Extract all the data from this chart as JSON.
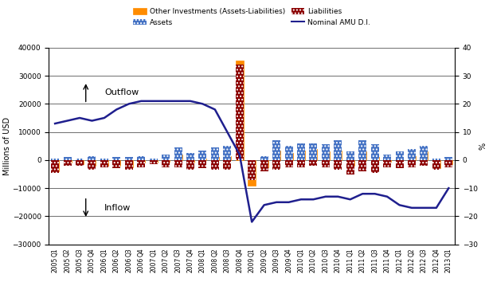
{
  "quarters": [
    "2005.Q1",
    "2005.Q2",
    "2005.Q3",
    "2005.Q4",
    "2006.Q1",
    "2006.Q2",
    "2006.Q3",
    "2006.Q4",
    "2007.Q1",
    "2007.Q2",
    "2007.Q3",
    "2007.Q4",
    "2008.Q1",
    "2008.Q2",
    "2008.Q3",
    "2008.Q4",
    "2009.Q1",
    "2009.Q2",
    "2009.Q3",
    "2009.Q4",
    "2010.Q1",
    "2010.Q2",
    "2010.Q3",
    "2010.Q4",
    "2011.Q1",
    "2011.Q2",
    "2011.Q3",
    "2011.Q4",
    "2012.Q1",
    "2012.Q2",
    "2012.Q3",
    "2012.Q4",
    "2013.Q1"
  ],
  "tick_labels": [
    "Q1",
    "Q2",
    "Q3",
    "Q4",
    "Q1",
    "Q2",
    "Q3",
    "Q4",
    "Q1",
    "Q2",
    "Q3",
    "Q4",
    "Q1",
    "Q2",
    "Q3",
    "Q4",
    "Q1",
    "Q2",
    "Q3",
    "Q4",
    "Q1",
    "Q2",
    "Q3",
    "Q4",
    "Q1",
    "Q2",
    "Q3",
    "Q4",
    "Q1",
    "Q2",
    "Q3",
    "Q4",
    "Q1"
  ],
  "year_labels": [
    "2005",
    "2005",
    "2005",
    "2005",
    "2006",
    "2006",
    "2006",
    "2006",
    "2007",
    "2007",
    "2007",
    "2007",
    "2008",
    "2008",
    "2008",
    "2008",
    "2009",
    "2009",
    "2009",
    "2009",
    "2010",
    "2010",
    "2010",
    "2010",
    "2011",
    "2011",
    "2011",
    "2011",
    "2012",
    "2012",
    "2012",
    "2012",
    "2013"
  ],
  "assets": [
    500,
    1000,
    500,
    1500,
    500,
    1000,
    1000,
    1500,
    500,
    2000,
    4500,
    2500,
    3500,
    4500,
    5000,
    1500,
    -2000,
    1500,
    7000,
    5000,
    6000,
    6000,
    5500,
    7000,
    3000,
    7000,
    5500,
    2000,
    3000,
    4000,
    5000,
    500,
    1000
  ],
  "liabilities": [
    -4500,
    -2000,
    -2000,
    -3500,
    -2500,
    -3000,
    -3500,
    -2500,
    -1500,
    -2500,
    -2500,
    -3500,
    -3000,
    -3500,
    -3500,
    34000,
    -7000,
    -4000,
    -3500,
    -2500,
    -2500,
    -2000,
    -2500,
    -3500,
    -5000,
    -4000,
    -4500,
    -2500,
    -3000,
    -2500,
    -2000,
    -3500,
    -2500
  ],
  "amu_di": [
    13,
    14,
    15,
    14,
    15,
    18,
    20,
    21,
    21,
    21,
    21,
    21,
    20,
    18,
    10,
    2,
    -22,
    -16,
    -15,
    -15,
    -14,
    -14,
    -13,
    -13,
    -14,
    -12,
    -12,
    -13,
    -16,
    -17,
    -17,
    -17,
    -10
  ],
  "bar_width": 0.65,
  "assets_color": "#4472C4",
  "liabilities_color": "#8B0000",
  "net_pos_color": "#FF8C00",
  "net_neg_color": "#FF8C00",
  "amu_color": "#1F1F8E",
  "ylim_left": [
    -30000,
    40000
  ],
  "ylim_right": [
    -30,
    40
  ],
  "yticks_left": [
    -30000,
    -20000,
    -10000,
    0,
    10000,
    20000,
    30000,
    40000
  ],
  "yticks_right": [
    -30,
    -20,
    -10,
    0,
    10,
    20,
    30,
    40
  ],
  "ylabel_left": "Millions of USD",
  "ylabel_right": "%",
  "bg_color": "#FFFFFF",
  "label_fontsize": 7,
  "tick_fontsize": 6.5
}
